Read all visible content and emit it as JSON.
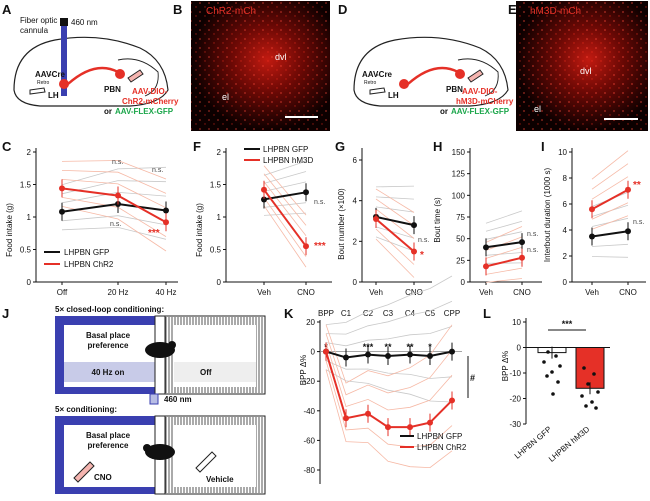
{
  "panels": {
    "A": {
      "letter": "A",
      "fiber": "Fiber optic",
      "cannula": "cannula",
      "wavelength": "460 nm",
      "aav": "AAV",
      "retro": "Retro",
      "cre": "-Cre",
      "lh": "LH",
      "pbn": "PBN",
      "virus1": "AAV-DIO-",
      "virus2": "ChR2-mCherry",
      "or": "or ",
      "virus3": "AAV-FLEX-GFP"
    },
    "B": {
      "letter": "B",
      "title": "ChR2-mCh",
      "dvl": "dvl",
      "el": "el"
    },
    "D": {
      "letter": "D",
      "aav": "AAV",
      "retro": "Retro",
      "cre": "-Cre",
      "lh": "LH",
      "pbn": "PBN",
      "virus1": "AAV-DIO-",
      "virus2": "hM3D-mCherry",
      "or": "or ",
      "virus3": "AAV-FLEX-GFP"
    },
    "E": {
      "letter": "E",
      "title": "hM3D-mCh",
      "dvl": "dvl",
      "el": "el"
    },
    "C": {
      "letter": "C",
      "ylabel": "Food intake (g)",
      "xticks": [
        "Off",
        "20 Hz",
        "40 Hz"
      ],
      "yticks": [
        "0",
        "0.5",
        "1",
        "1.5",
        "2"
      ],
      "ns1": "n.s.",
      "ns2": "n.s.",
      "ns3": "n.s.",
      "sig": "***",
      "legend_gfp": "LHPBN GFP",
      "legend_chr2": "LHPBN ChR2"
    },
    "F": {
      "letter": "F",
      "ylabel": "Food intake (g)",
      "xticks": [
        "Veh",
        "CNO"
      ],
      "yticks": [
        "0",
        "0.5",
        "1",
        "1.5",
        "2"
      ],
      "ns": "n.s.",
      "sig": "***",
      "legend_gfp": "LHPBN GFP",
      "legend_hm3d": "LHPBN hM3D"
    },
    "G": {
      "letter": "G",
      "ylabel": "Bout number (×100)",
      "xticks": [
        "Veh",
        "CNO"
      ],
      "yticks": [
        "0",
        "2",
        "4",
        "6"
      ],
      "ns": "n.s.",
      "sig": "*"
    },
    "H": {
      "letter": "H",
      "ylabel": "Bout time (s)",
      "xticks": [
        "Veh",
        "CNO"
      ],
      "yticks": [
        "0",
        "25",
        "50",
        "75",
        "100",
        "125",
        "150"
      ],
      "ns1": "n.s.",
      "ns2": "n.s."
    },
    "I": {
      "letter": "I",
      "ylabel": "Interbout duration (1000 s)",
      "xticks": [
        "Veh",
        "CNO"
      ],
      "yticks": [
        "0",
        "2",
        "4",
        "6",
        "8",
        "10"
      ],
      "ns": "n.s.",
      "sig": "**"
    },
    "J": {
      "letter": "J",
      "cond1": "5× closed-loop conditioning:",
      "basal1": "Basal place",
      "basal2": "preference",
      "on": "40 Hz on",
      "off": "Off",
      "nm": "460 nm",
      "cond2": "5× conditioning:",
      "basal3": "Basal place",
      "basal4": "preference",
      "cno": "CNO",
      "vehicle": "Vehicle"
    },
    "K": {
      "letter": "K",
      "ylabel": "BPP Δ%",
      "xticks": [
        "BPP",
        "C1",
        "C2",
        "C3",
        "C4",
        "C5",
        "CPP"
      ],
      "yticks": [
        "20",
        "0",
        "-20",
        "-40",
        "-60",
        "-80"
      ],
      "stars": [
        "*",
        "",
        "***",
        "**",
        "**",
        "*"
      ],
      "hash": "#",
      "legend_gfp": "LHPBN GFP",
      "legend_chr2": "LHPBN ChR2"
    },
    "L": {
      "letter": "L",
      "ylabel": "BPP Δ%",
      "yticks": [
        "10",
        "0",
        "-10",
        "-20",
        "-30"
      ],
      "sig": "***",
      "xlab1": "LHPBN GFP",
      "xlab2": "LHPBN hM3D"
    }
  },
  "chart_data": [
    {
      "panel": "C",
      "type": "line",
      "categories": [
        "Off",
        "20 Hz",
        "40 Hz"
      ],
      "ylim": [
        0,
        2
      ],
      "series": [
        {
          "name": "LHPBN GFP",
          "values": [
            1.08,
            1.2,
            1.1
          ]
        },
        {
          "name": "LHPBN ChR2",
          "values": [
            1.44,
            1.33,
            0.92
          ]
        }
      ]
    },
    {
      "panel": "F",
      "type": "line",
      "categories": [
        "Veh",
        "CNO"
      ],
      "ylim": [
        0,
        2
      ],
      "series": [
        {
          "name": "LHPBN GFP",
          "values": [
            1.27,
            1.38
          ]
        },
        {
          "name": "LHPBN hM3D",
          "values": [
            1.42,
            0.55
          ]
        }
      ]
    },
    {
      "panel": "G",
      "type": "line",
      "categories": [
        "Veh",
        "CNO"
      ],
      "ylim": [
        0,
        6
      ],
      "series": [
        {
          "name": "GFP",
          "values": [
            3.2,
            2.8
          ]
        },
        {
          "name": "hM3D",
          "values": [
            3.1,
            1.5
          ]
        }
      ]
    },
    {
      "panel": "H",
      "type": "line",
      "categories": [
        "Veh",
        "CNO"
      ],
      "ylim": [
        0,
        150
      ],
      "series": [
        {
          "name": "GFP",
          "values": [
            40,
            46
          ]
        },
        {
          "name": "hM3D",
          "values": [
            18,
            28
          ]
        }
      ]
    },
    {
      "panel": "I",
      "type": "line",
      "categories": [
        "Veh",
        "CNO"
      ],
      "ylim": [
        0,
        10
      ],
      "series": [
        {
          "name": "GFP",
          "values": [
            3.5,
            3.9
          ]
        },
        {
          "name": "hM3D",
          "values": [
            5.6,
            7.1
          ]
        }
      ]
    },
    {
      "panel": "K",
      "type": "line",
      "categories": [
        "BPP",
        "C1",
        "C2",
        "C3",
        "C4",
        "C5",
        "CPP"
      ],
      "ylim": [
        -80,
        20
      ],
      "series": [
        {
          "name": "LHPBN GFP",
          "values": [
            0,
            -4,
            -2,
            -3,
            -2,
            -3,
            0
          ]
        },
        {
          "name": "LHPBN ChR2",
          "values": [
            0,
            -45,
            -42,
            -51,
            -51,
            -48,
            -33
          ]
        }
      ]
    },
    {
      "panel": "L",
      "type": "bar",
      "categories": [
        "LHPBN GFP",
        "LHPBN hM3D"
      ],
      "values": [
        -2,
        -16
      ],
      "ylim": [
        -30,
        10
      ]
    }
  ]
}
